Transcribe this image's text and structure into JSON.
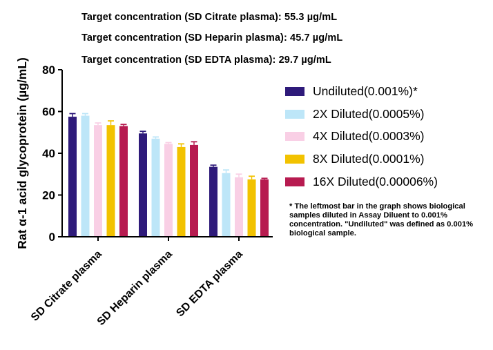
{
  "annotations": [
    "Target concentration (SD Citrate plasma): 55.3 µg/mL",
    "Target concentration (SD Heparin plasma): 45.7 µg/mL",
    "Target concentration (SD EDTA plasma): 29.7 µg/mL"
  ],
  "footnote": "* The leftmost bar in the graph shows biological samples diluted in Assay Diluent to 0.001% concentration. \"Undiluted\" was defined as 0.001% biological sample.",
  "chart_data": {
    "type": "bar",
    "ylabel": "Rat α-1 acid glycoprotein (µg/mL)",
    "xlabel": "",
    "ylim": [
      0,
      80
    ],
    "yticks": [
      0,
      20,
      40,
      60,
      80
    ],
    "categories": [
      "SD Citrate plasma",
      "SD Heparin plasma",
      "SD EDTA plasma"
    ],
    "legend_position": "right",
    "error_bars": true,
    "series": [
      {
        "name": "Undiluted(0.001%)*",
        "color": "#2e1a7a",
        "values": [
          57.5,
          49.5,
          33.5
        ],
        "errors": [
          1.5,
          1.0,
          0.8
        ]
      },
      {
        "name": "2X Diluted(0.0005%)",
        "color": "#bde6f8",
        "values": [
          58.0,
          47.0,
          30.5
        ],
        "errors": [
          1.0,
          0.8,
          1.5
        ]
      },
      {
        "name": "4X Diluted(0.0003%)",
        "color": "#f9cfe5",
        "values": [
          53.5,
          44.5,
          28.5
        ],
        "errors": [
          1.0,
          0.6,
          1.5
        ]
      },
      {
        "name": "8X Diluted(0.0001%)",
        "color": "#f2c200",
        "values": [
          53.5,
          43.0,
          27.5
        ],
        "errors": [
          2.0,
          1.5,
          1.5
        ]
      },
      {
        "name": "16X Diluted(0.00006%)",
        "color": "#b71b50",
        "values": [
          53.0,
          44.0,
          27.5
        ],
        "errors": [
          0.8,
          1.5,
          0.5
        ]
      }
    ]
  }
}
